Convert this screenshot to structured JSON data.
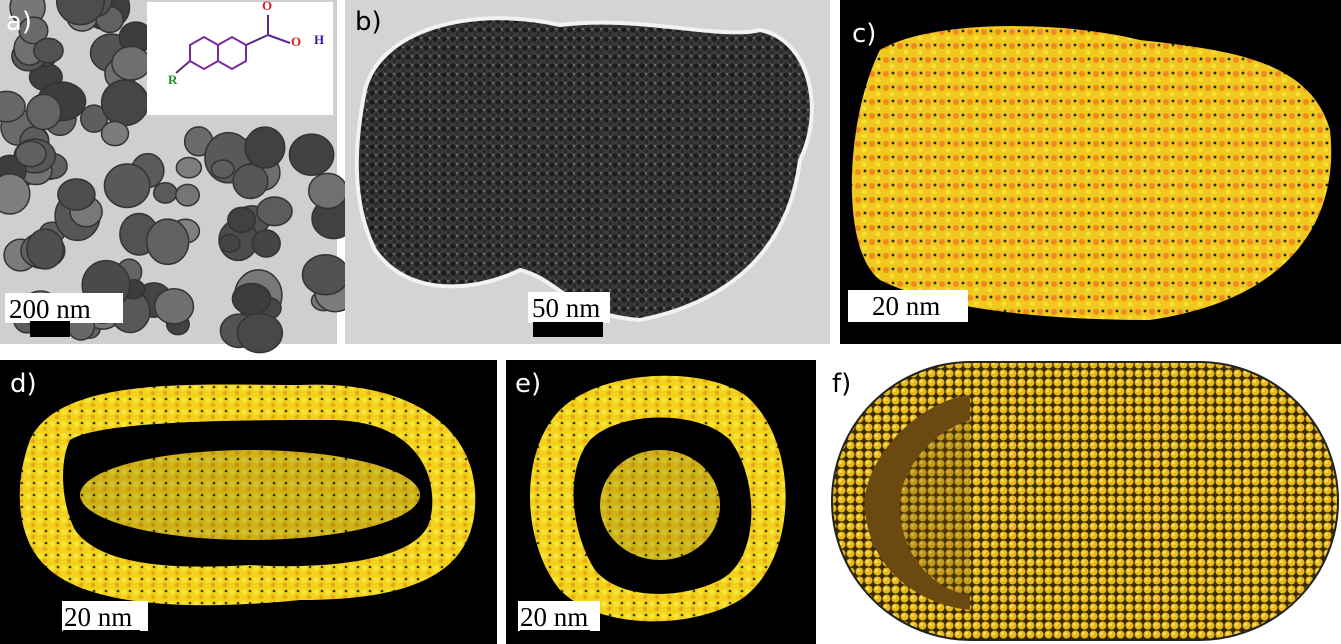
{
  "panels": [
    {
      "label": "a)",
      "scale_bar": "200 nm"
    },
    {
      "label": "b)",
      "scale_bar": "50 nm"
    },
    {
      "label": "c)",
      "scale_bar": "20 nm"
    },
    {
      "label": "d)",
      "scale_bar": "20 nm"
    },
    {
      "label": "e)",
      "scale_bar": "20 nm"
    },
    {
      "label": "f)"
    }
  ],
  "inset": {
    "atoms": [
      "O",
      "O",
      "H",
      "R"
    ]
  }
}
